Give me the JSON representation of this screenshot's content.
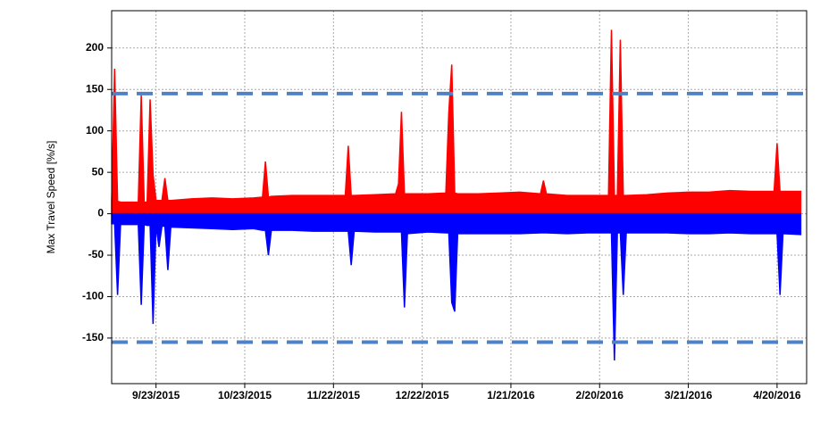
{
  "chart_data": {
    "type": "area",
    "y_label": "Max Travel Speed [%/s]",
    "xlim": [
      "2015-09-08",
      "2016-04-30"
    ],
    "xticks": [
      {
        "value": "2015-09-23",
        "label": "9/23/2015"
      },
      {
        "value": "2015-10-23",
        "label": "10/23/2015"
      },
      {
        "value": "2015-11-22",
        "label": "11/22/2015"
      },
      {
        "value": "2015-12-22",
        "label": "12/22/2015"
      },
      {
        "value": "2016-01-21",
        "label": "1/21/2016"
      },
      {
        "value": "2016-02-20",
        "label": "2/20/2016"
      },
      {
        "value": "2016-03-21",
        "label": "3/21/2016"
      },
      {
        "value": "2016-04-20",
        "label": "4/20/2016"
      }
    ],
    "ylim": [
      -205,
      245
    ],
    "yticks": [
      200,
      150,
      100,
      50,
      0,
      -50,
      -100,
      -150
    ],
    "grid": true,
    "thresholds": [
      145,
      -155
    ],
    "threshold_color": "#4f81c7",
    "x": [
      "2015-09-08",
      "2015-09-09",
      "2015-09-10",
      "2015-09-11",
      "2015-09-17",
      "2015-09-18",
      "2015-09-19",
      "2015-09-20",
      "2015-09-21",
      "2015-09-22",
      "2015-09-23",
      "2015-09-24",
      "2015-09-25",
      "2015-09-26",
      "2015-09-27",
      "2015-09-28",
      "2015-10-05",
      "2015-10-12",
      "2015-10-19",
      "2015-10-26",
      "2015-10-29",
      "2015-10-30",
      "2015-10-31",
      "2015-11-01",
      "2015-11-08",
      "2015-11-15",
      "2015-11-22",
      "2015-11-26",
      "2015-11-27",
      "2015-11-28",
      "2015-11-29",
      "2015-12-06",
      "2015-12-13",
      "2015-12-14",
      "2015-12-15",
      "2015-12-16",
      "2015-12-17",
      "2015-12-24",
      "2015-12-30",
      "2015-12-31",
      "2016-01-01",
      "2016-01-02",
      "2016-01-03",
      "2016-01-10",
      "2016-01-17",
      "2016-01-24",
      "2016-01-31",
      "2016-02-01",
      "2016-02-02",
      "2016-02-09",
      "2016-02-16",
      "2016-02-23",
      "2016-02-24",
      "2016-02-25",
      "2016-02-26",
      "2016-02-27",
      "2016-02-28",
      "2016-02-29",
      "2016-03-07",
      "2016-03-14",
      "2016-03-21",
      "2016-03-28",
      "2016-04-04",
      "2016-04-11",
      "2016-04-19",
      "2016-04-20",
      "2016-04-21",
      "2016-04-22",
      "2016-04-28"
    ],
    "series": [
      {
        "color": "#ff0000",
        "values": [
          15,
          175,
          15,
          14,
          14,
          143,
          14,
          14,
          138,
          47,
          16,
          16,
          16,
          43,
          16,
          16,
          18,
          19,
          18,
          19,
          20,
          63,
          20,
          21,
          22,
          22,
          22,
          22,
          82,
          22,
          22,
          23,
          24,
          36,
          123,
          24,
          24,
          24,
          25,
          122,
          180,
          25,
          24,
          24,
          25,
          26,
          24,
          40,
          24,
          22,
          22,
          22,
          222,
          22,
          22,
          210,
          22,
          22,
          23,
          25,
          26,
          26,
          28,
          27,
          27,
          85,
          27,
          27,
          27
        ]
      },
      {
        "color": "#0000ff",
        "values": [
          -12,
          -12,
          -98,
          -13,
          -13,
          -110,
          -13,
          -14,
          -14,
          -133,
          -14,
          -40,
          -15,
          -15,
          -68,
          -16,
          -17,
          -18,
          -19,
          -18,
          -20,
          -20,
          -50,
          -20,
          -20,
          -21,
          -21,
          -21,
          -21,
          -62,
          -21,
          -22,
          -22,
          -22,
          -22,
          -113,
          -24,
          -22,
          -23,
          -23,
          -107,
          -118,
          -24,
          -24,
          -24,
          -24,
          -23,
          -23,
          -23,
          -24,
          -23,
          -23,
          -23,
          -177,
          -23,
          -23,
          -98,
          -23,
          -23,
          -23,
          -24,
          -24,
          -23,
          -24,
          -24,
          -24,
          -98,
          -24,
          -25
        ]
      }
    ]
  }
}
